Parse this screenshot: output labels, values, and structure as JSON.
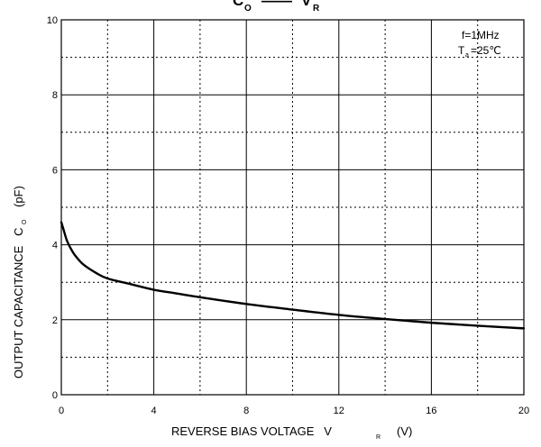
{
  "chart_data": {
    "type": "line",
    "title": {
      "main": "C",
      "main_sub": "O",
      "sep": "——",
      "vs": "V",
      "vs_sub": "R"
    },
    "xlabel": {
      "text": "REVERSE BIAS VOLTAGE   V",
      "sub": "R",
      "unit": "(V)"
    },
    "ylabel": {
      "text": "OUTPUT CAPACITANCE   C",
      "sub": "O",
      "unit": "(pF)"
    },
    "annotation": {
      "freq": "f=1MHz",
      "temp_pre": "T",
      "temp_sub": "a",
      "temp_post": "=25℃"
    },
    "xlim": [
      0,
      20
    ],
    "ylim": [
      0,
      10
    ],
    "x_ticks": [
      0,
      4,
      8,
      12,
      16,
      20
    ],
    "y_ticks": [
      0,
      2,
      4,
      6,
      8,
      10
    ],
    "x_major": [
      4,
      8,
      12,
      16
    ],
    "x_minor": [
      2,
      6,
      10,
      14,
      18
    ],
    "y_major": [
      2,
      4,
      6,
      8
    ],
    "y_minor": [
      1,
      3,
      5,
      7,
      9
    ],
    "grid": true,
    "series": [
      {
        "x": [
          0,
          0.1,
          0.25,
          0.5,
          0.75,
          1,
          1.5,
          2,
          3,
          4,
          5,
          6,
          8,
          10,
          12,
          14,
          16,
          18,
          20
        ],
        "y": [
          4.6,
          4.4,
          4.1,
          3.8,
          3.6,
          3.45,
          3.25,
          3.1,
          2.95,
          2.8,
          2.7,
          2.6,
          2.42,
          2.27,
          2.13,
          2.02,
          1.92,
          1.84,
          1.77
        ]
      }
    ]
  }
}
